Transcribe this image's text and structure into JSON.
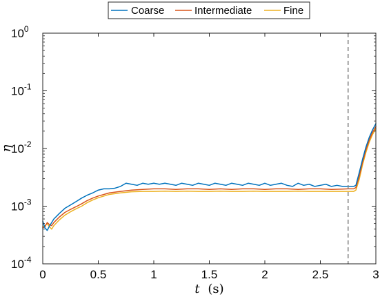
{
  "chart_data": {
    "type": "line",
    "title": "",
    "xlabel": {
      "italic": "t",
      "unit": "(s)"
    },
    "ylabel": "η",
    "xlim": [
      0,
      3
    ],
    "ylim": [
      0.0001,
      1
    ],
    "yscale": "log",
    "grid": false,
    "legend_position": "top-center",
    "x_ticks": [
      {
        "value": 0,
        "label": "0"
      },
      {
        "value": 0.5,
        "label": "0.5"
      },
      {
        "value": 1,
        "label": "1"
      },
      {
        "value": 1.5,
        "label": "1.5"
      },
      {
        "value": 2,
        "label": "2"
      },
      {
        "value": 2.5,
        "label": "2.5"
      },
      {
        "value": 3,
        "label": "3"
      }
    ],
    "y_ticks": [
      {
        "value": 0.0001,
        "base": "10",
        "exp": "-4"
      },
      {
        "value": 0.001,
        "base": "10",
        "exp": "-3"
      },
      {
        "value": 0.01,
        "base": "10",
        "exp": "-2"
      },
      {
        "value": 0.1,
        "base": "10",
        "exp": "-1"
      },
      {
        "value": 1,
        "base": "10",
        "exp": "0"
      }
    ],
    "vline": {
      "x": 2.75,
      "style": "dashed",
      "color": "#808080"
    },
    "series": [
      {
        "name": "Coarse",
        "color": "#0072BD",
        "x": [
          0,
          0.02,
          0.04,
          0.06,
          0.08,
          0.1,
          0.15,
          0.2,
          0.25,
          0.3,
          0.35,
          0.4,
          0.45,
          0.5,
          0.55,
          0.6,
          0.65,
          0.7,
          0.75,
          0.8,
          0.85,
          0.9,
          0.95,
          1.0,
          1.05,
          1.1,
          1.15,
          1.2,
          1.25,
          1.3,
          1.35,
          1.4,
          1.45,
          1.5,
          1.55,
          1.6,
          1.65,
          1.7,
          1.75,
          1.8,
          1.85,
          1.9,
          1.95,
          2.0,
          2.05,
          2.1,
          2.15,
          2.2,
          2.25,
          2.3,
          2.35,
          2.4,
          2.45,
          2.5,
          2.55,
          2.6,
          2.65,
          2.7,
          2.75,
          2.8,
          2.82,
          2.85,
          2.88,
          2.91,
          2.94,
          2.97,
          3.0
        ],
        "y": [
          0.00055,
          0.00042,
          0.00038,
          0.00045,
          0.00052,
          0.0006,
          0.00075,
          0.00092,
          0.00105,
          0.0012,
          0.00138,
          0.00155,
          0.0017,
          0.0019,
          0.002,
          0.002,
          0.00205,
          0.0022,
          0.0025,
          0.0024,
          0.0023,
          0.0025,
          0.0024,
          0.0025,
          0.0024,
          0.0025,
          0.0024,
          0.0023,
          0.0025,
          0.0024,
          0.0023,
          0.0025,
          0.0024,
          0.0023,
          0.0025,
          0.0024,
          0.0023,
          0.0025,
          0.0024,
          0.0023,
          0.0025,
          0.0024,
          0.0023,
          0.0025,
          0.0023,
          0.0024,
          0.0025,
          0.0023,
          0.0022,
          0.0025,
          0.0023,
          0.0024,
          0.0022,
          0.0023,
          0.0024,
          0.0022,
          0.0023,
          0.0022,
          0.0022,
          0.0022,
          0.0023,
          0.0038,
          0.0065,
          0.0105,
          0.0155,
          0.021,
          0.027
        ]
      },
      {
        "name": "Intermediate",
        "color": "#D95319",
        "x": [
          0,
          0.02,
          0.04,
          0.06,
          0.08,
          0.1,
          0.15,
          0.2,
          0.25,
          0.3,
          0.35,
          0.4,
          0.45,
          0.5,
          0.6,
          0.7,
          0.8,
          0.9,
          1.0,
          1.1,
          1.2,
          1.3,
          1.4,
          1.5,
          1.6,
          1.7,
          1.8,
          1.9,
          2.0,
          2.1,
          2.2,
          2.3,
          2.4,
          2.5,
          2.6,
          2.7,
          2.75,
          2.8,
          2.82,
          2.85,
          2.88,
          2.91,
          2.94,
          2.97,
          3.0
        ],
        "y": [
          0.00042,
          0.00044,
          0.00052,
          0.00048,
          0.00046,
          0.00052,
          0.00065,
          0.00078,
          0.00088,
          0.00098,
          0.0011,
          0.00125,
          0.00138,
          0.0015,
          0.0017,
          0.0018,
          0.0019,
          0.00195,
          0.002,
          0.002,
          0.00195,
          0.002,
          0.002,
          0.00195,
          0.002,
          0.00195,
          0.002,
          0.002,
          0.00195,
          0.002,
          0.002,
          0.00195,
          0.002,
          0.002,
          0.00195,
          0.00198,
          0.002,
          0.002,
          0.0021,
          0.0033,
          0.0058,
          0.0094,
          0.014,
          0.019,
          0.024
        ]
      },
      {
        "name": "Fine",
        "color": "#EDB120",
        "x": [
          0,
          0.02,
          0.04,
          0.06,
          0.08,
          0.1,
          0.15,
          0.2,
          0.25,
          0.3,
          0.35,
          0.4,
          0.45,
          0.5,
          0.6,
          0.7,
          0.8,
          0.9,
          1.0,
          1.1,
          1.2,
          1.3,
          1.4,
          1.5,
          1.6,
          1.7,
          1.8,
          1.9,
          2.0,
          2.1,
          2.2,
          2.3,
          2.4,
          2.5,
          2.6,
          2.7,
          2.75,
          2.8,
          2.82,
          2.85,
          2.88,
          2.91,
          2.94,
          2.97,
          3.0
        ],
        "y": [
          0.00044,
          0.00046,
          0.0005,
          0.00044,
          0.0004,
          0.00046,
          0.00058,
          0.0007,
          0.0008,
          0.0009,
          0.001,
          0.00115,
          0.00128,
          0.0014,
          0.0016,
          0.0017,
          0.00178,
          0.0018,
          0.0018,
          0.00182,
          0.0018,
          0.00182,
          0.0018,
          0.0018,
          0.00182,
          0.0018,
          0.0018,
          0.00182,
          0.0018,
          0.0018,
          0.0018,
          0.00182,
          0.0018,
          0.0018,
          0.0018,
          0.0018,
          0.0018,
          0.0018,
          0.0019,
          0.0029,
          0.0052,
          0.0085,
          0.0128,
          0.0175,
          0.022
        ]
      }
    ]
  }
}
